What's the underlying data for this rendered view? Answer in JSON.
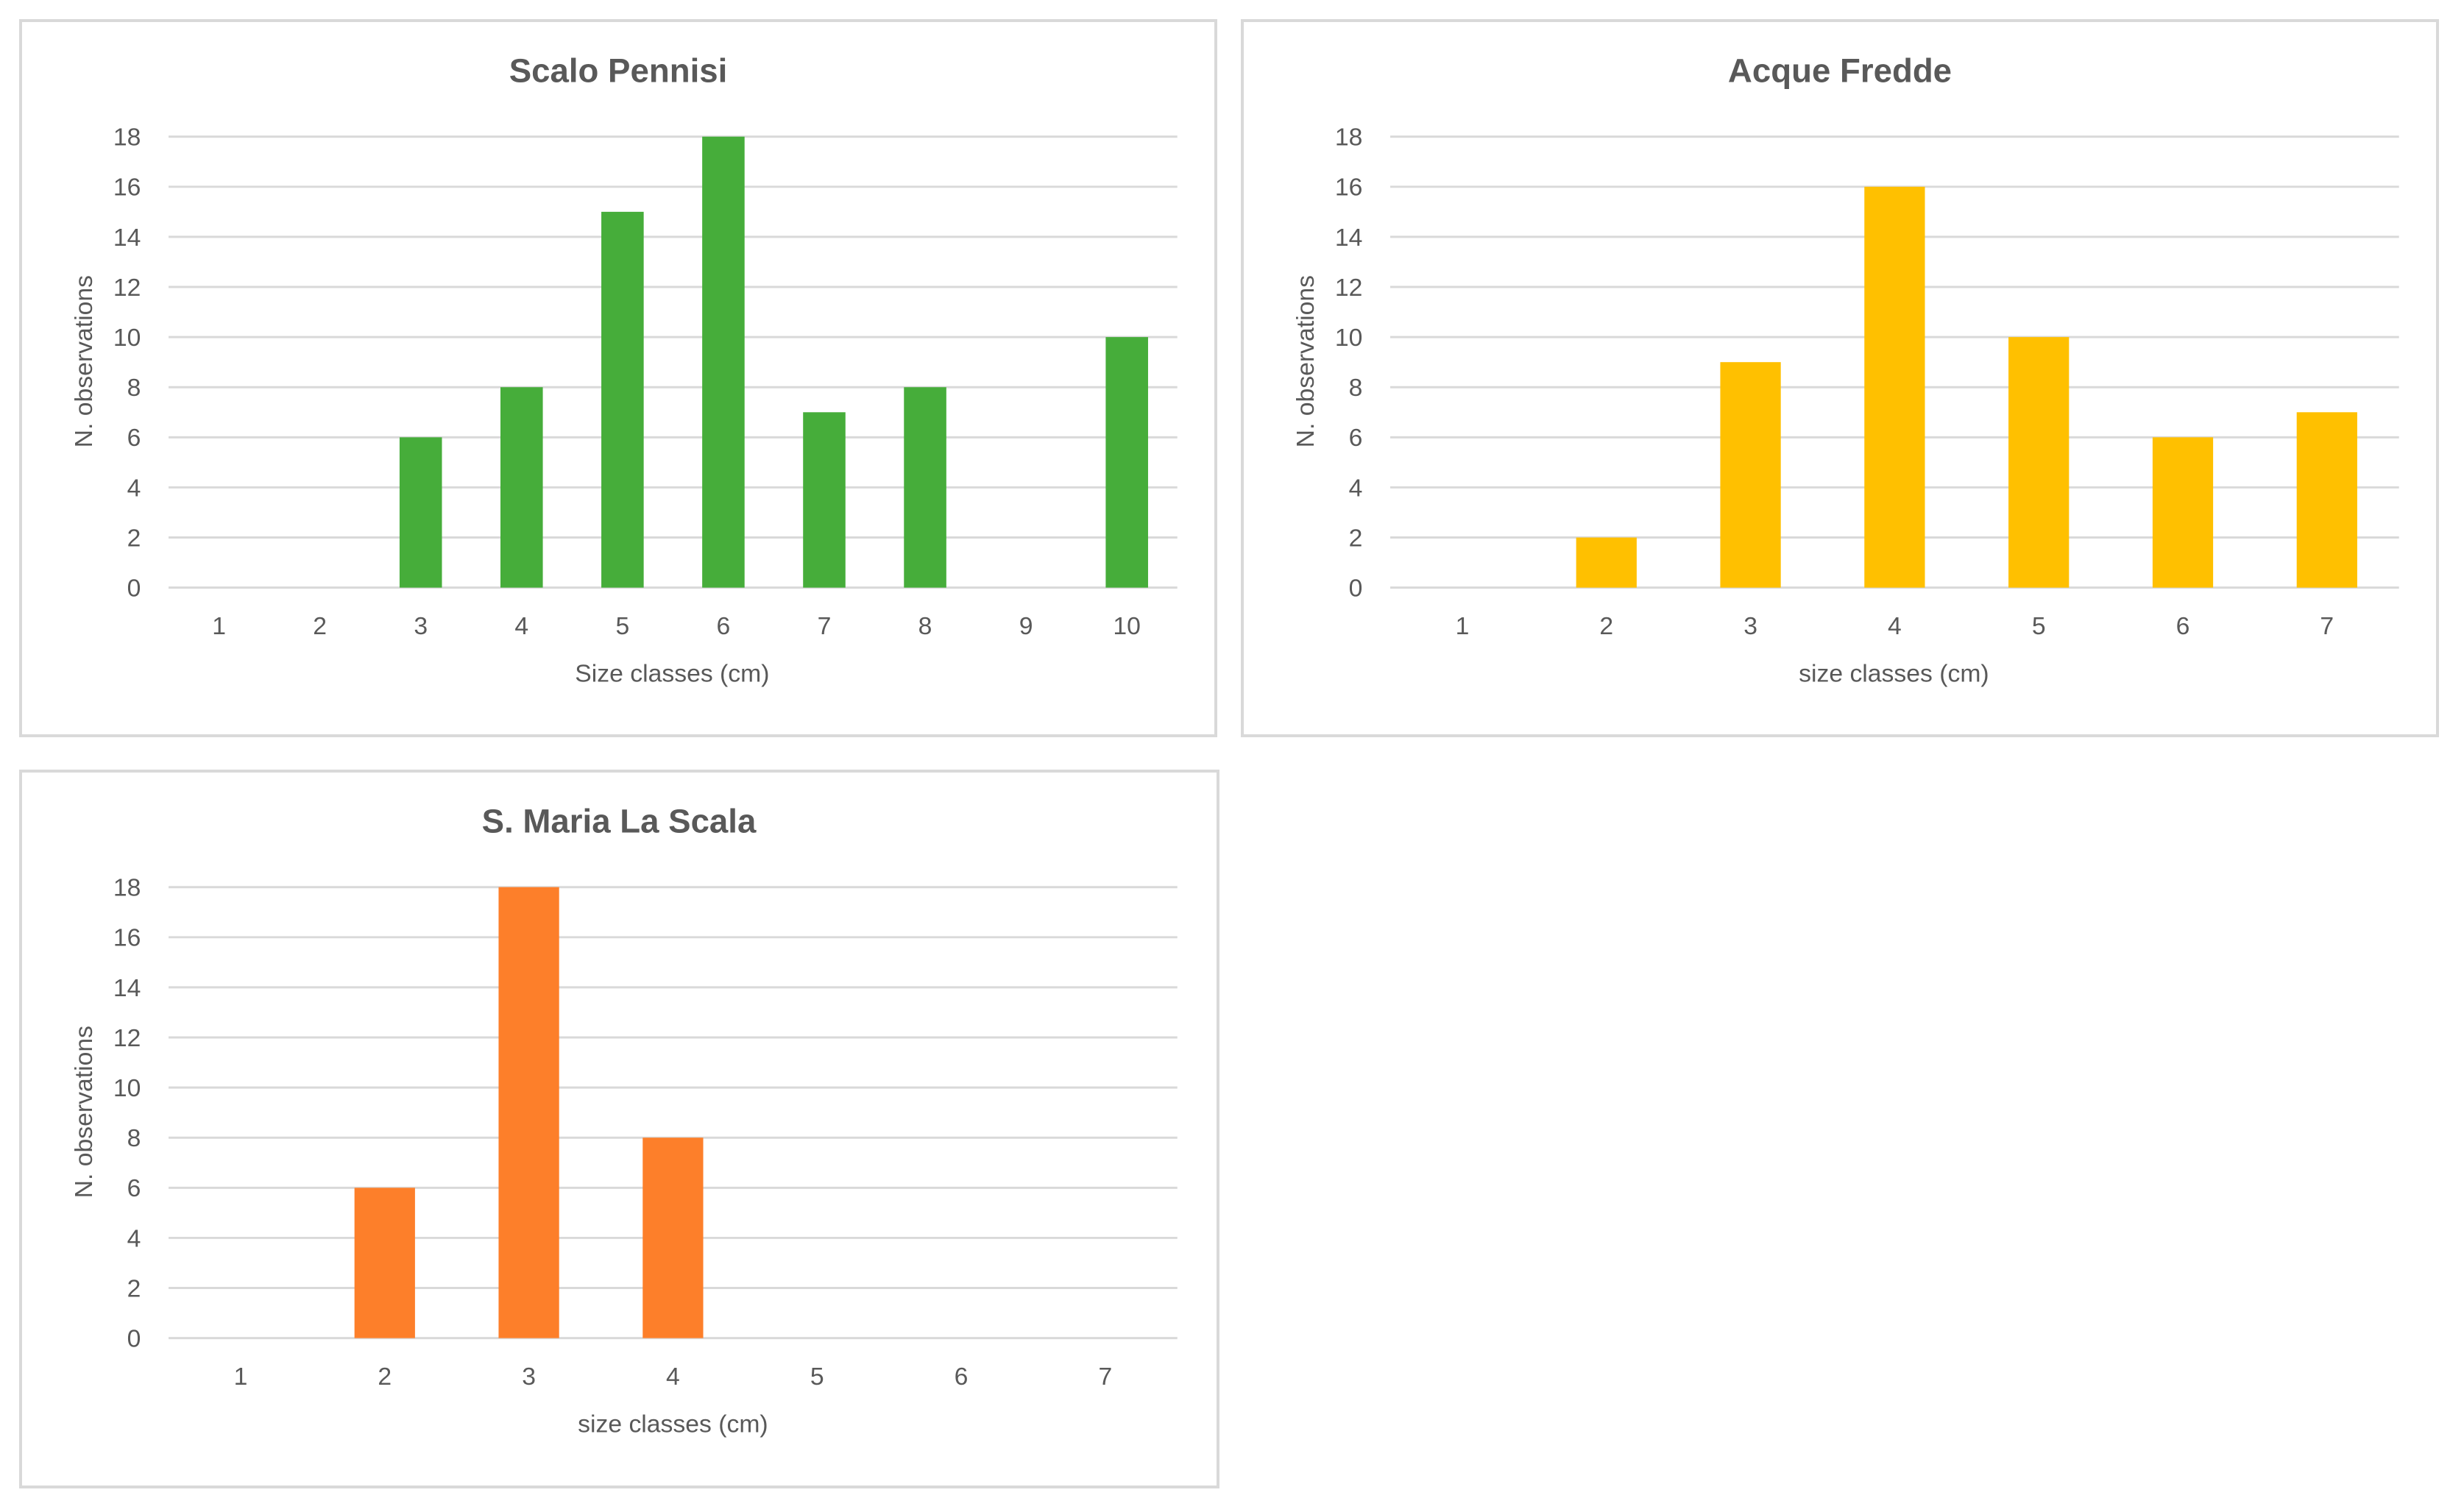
{
  "chart_data": [
    {
      "type": "bar",
      "title": "Scalo Pennisi",
      "xlabel": "Size classes (cm)",
      "ylabel": "N. observations",
      "categories": [
        "1",
        "2",
        "3",
        "4",
        "5",
        "6",
        "7",
        "8",
        "9",
        "10"
      ],
      "values": [
        0,
        0,
        6,
        8,
        15,
        18,
        7,
        8,
        0,
        10
      ],
      "ylim": [
        0,
        18
      ],
      "yticks": [
        "0",
        "2",
        "4",
        "6",
        "8",
        "10",
        "12",
        "14",
        "16",
        "18"
      ],
      "grid": true,
      "legend": "none",
      "color": "#46ad3a"
    },
    {
      "type": "bar",
      "title": "Acque Fredde",
      "xlabel": "size classes (cm)",
      "ylabel": "N. observations",
      "categories": [
        "1",
        "2",
        "3",
        "4",
        "5",
        "6",
        "7"
      ],
      "values": [
        0,
        2,
        9,
        16,
        10,
        6,
        7
      ],
      "ylim": [
        0,
        18
      ],
      "yticks": [
        "0",
        "2",
        "4",
        "6",
        "8",
        "10",
        "12",
        "14",
        "16",
        "18"
      ],
      "grid": true,
      "legend": "none",
      "color": "#ffc000"
    },
    {
      "type": "bar",
      "title": "S. Maria La Scala",
      "xlabel": "size classes (cm)",
      "ylabel": "N. observations",
      "categories": [
        "1",
        "2",
        "3",
        "4",
        "5",
        "6",
        "7"
      ],
      "values": [
        0,
        6,
        18,
        8,
        0,
        0,
        0
      ],
      "ylim": [
        0,
        18
      ],
      "yticks": [
        "0",
        "2",
        "4",
        "6",
        "8",
        "10",
        "12",
        "14",
        "16",
        "18"
      ],
      "grid": true,
      "legend": "none",
      "color": "#fd7f2a"
    }
  ]
}
